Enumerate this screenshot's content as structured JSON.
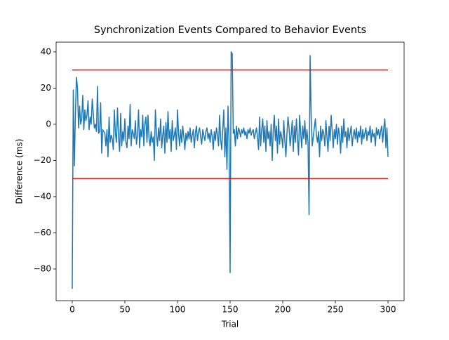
{
  "chart_data": {
    "type": "line",
    "title": "Synchronization Events Compared to Behavior Events",
    "xlabel": "Trial",
    "ylabel": "Difference (ms)",
    "xlim": [
      -15.3,
      315.3
    ],
    "ylim": [
      -97.5,
      45.4
    ],
    "xticks": [
      0,
      50,
      100,
      150,
      200,
      250,
      300
    ],
    "yticks": [
      {
        "value": -80,
        "label": "−80"
      },
      {
        "value": -60,
        "label": "−60"
      },
      {
        "value": -40,
        "label": "−40"
      },
      {
        "value": -20,
        "label": "−20"
      },
      0,
      20,
      40
    ],
    "x": [
      0,
      1,
      2,
      3,
      4,
      5,
      6,
      7,
      8,
      9,
      10,
      11,
      12,
      13,
      14,
      15,
      16,
      17,
      18,
      19,
      20,
      21,
      22,
      23,
      24,
      25,
      26,
      27,
      28,
      29,
      30,
      31,
      32,
      33,
      34,
      35,
      36,
      37,
      38,
      39,
      40,
      41,
      42,
      43,
      44,
      45,
      46,
      47,
      48,
      49,
      50,
      51,
      52,
      53,
      54,
      55,
      56,
      57,
      58,
      59,
      60,
      61,
      62,
      63,
      64,
      65,
      66,
      67,
      68,
      69,
      70,
      71,
      72,
      73,
      74,
      75,
      76,
      77,
      78,
      79,
      80,
      81,
      82,
      83,
      84,
      85,
      86,
      87,
      88,
      89,
      90,
      91,
      92,
      93,
      94,
      95,
      96,
      97,
      98,
      99,
      100,
      101,
      102,
      103,
      104,
      105,
      106,
      107,
      108,
      109,
      110,
      111,
      112,
      113,
      114,
      115,
      116,
      117,
      118,
      119,
      120,
      121,
      122,
      123,
      124,
      125,
      126,
      127,
      128,
      129,
      130,
      131,
      132,
      133,
      134,
      135,
      136,
      137,
      138,
      139,
      140,
      141,
      142,
      143,
      144,
      145,
      146,
      147,
      148,
      149,
      150,
      151,
      152,
      153,
      154,
      155,
      156,
      157,
      158,
      159,
      160,
      161,
      162,
      163,
      164,
      165,
      166,
      167,
      168,
      169,
      170,
      171,
      172,
      173,
      174,
      175,
      176,
      177,
      178,
      179,
      180,
      181,
      182,
      183,
      184,
      185,
      186,
      187,
      188,
      189,
      190,
      191,
      192,
      193,
      194,
      195,
      196,
      197,
      198,
      199,
      200,
      201,
      202,
      203,
      204,
      205,
      206,
      207,
      208,
      209,
      210,
      211,
      212,
      213,
      214,
      215,
      216,
      217,
      218,
      219,
      220,
      221,
      222,
      223,
      224,
      225,
      226,
      227,
      228,
      229,
      230,
      231,
      232,
      233,
      234,
      235,
      236,
      237,
      238,
      239,
      240,
      241,
      242,
      243,
      244,
      245,
      246,
      247,
      248,
      249,
      250,
      251,
      252,
      253,
      254,
      255,
      256,
      257,
      258,
      259,
      260,
      261,
      262,
      263,
      264,
      265,
      266,
      267,
      268,
      269,
      270,
      271,
      272,
      273,
      274,
      275,
      276,
      277,
      278,
      279,
      280,
      281,
      282,
      283,
      284,
      285,
      286,
      287,
      288,
      289,
      290,
      291,
      292,
      293,
      294,
      295,
      296,
      297,
      298,
      299,
      300
    ],
    "series": [
      {
        "color": "#1f77b4",
        "values": [
          -91,
          19,
          -23,
          5,
          26,
          20,
          -2,
          10,
          0,
          3,
          16,
          -3,
          8,
          2,
          5,
          13,
          -3,
          4,
          0,
          14,
          6,
          -2,
          0,
          -4,
          21,
          -5,
          -4,
          12,
          -16,
          -3,
          -4,
          -5,
          -12,
          -3,
          -18,
          4,
          -10,
          -6,
          -8,
          -14,
          8,
          -5,
          -10,
          9,
          -7,
          -15,
          6,
          -12,
          -4,
          -9,
          3,
          -10,
          -13,
          -1,
          -8,
          11,
          -12,
          -3,
          -5,
          -8,
          2,
          -11,
          -6,
          8,
          -13,
          -3,
          -7,
          5,
          -12,
          0,
          4,
          -10,
          5,
          -8,
          -12,
          -4,
          -10,
          -7,
          -20,
          8,
          -5,
          -12,
          -2,
          -9,
          3,
          -13,
          -6,
          -1,
          -16,
          1,
          -10,
          7,
          -8,
          -3,
          -15,
          2,
          -9,
          -6,
          -2,
          -14,
          8,
          -5,
          -12,
          -3,
          -10,
          -1,
          -7,
          -14,
          -5,
          -9,
          -4,
          -8,
          -2,
          -10,
          -6,
          -3,
          -13,
          -5,
          -1,
          -9,
          -4,
          -2,
          -7,
          -11,
          -3,
          -6,
          -9,
          -4,
          -2,
          -8,
          -5,
          -10,
          -3,
          -7,
          -14,
          -4,
          -9,
          -2,
          -6,
          -12,
          5,
          -8,
          -14,
          -3,
          8,
          -18,
          -2,
          -25,
          10,
          -10,
          -82,
          40,
          39,
          -5,
          -3,
          -12,
          -1,
          -8,
          -2,
          -4,
          -7,
          -3,
          -5,
          -2,
          -6,
          -4,
          -8,
          -3,
          -5,
          -2,
          -6,
          -4,
          -3,
          -8,
          -5,
          -2,
          -7,
          -14,
          4,
          -12,
          -3,
          3,
          -10,
          -1,
          -15,
          2,
          -8,
          -4,
          -12,
          0,
          -20,
          -3,
          5,
          -9,
          -1,
          -16,
          3,
          -11,
          -4,
          -7,
          -13,
          2,
          -9,
          -18,
          -5,
          4,
          -2,
          -12,
          -6,
          2,
          -15,
          -1,
          -10,
          3,
          -8,
          -17,
          5,
          -4,
          -13,
          -1,
          -8,
          2,
          -11,
          -3,
          -10,
          -50,
          38,
          5,
          -12,
          -7,
          -2,
          3,
          -6,
          -10,
          -4,
          -18,
          -1,
          -9,
          -3,
          -5,
          -12,
          2,
          -7,
          -15,
          -1,
          -9,
          5,
          -4,
          -13,
          -3,
          -8,
          0,
          -11,
          -2,
          -6,
          -16,
          -1,
          -10,
          3,
          -7,
          -4,
          -13,
          -2,
          -9,
          -5,
          -1,
          -12,
          -6,
          -3,
          -8,
          -2,
          -10,
          -4,
          -7,
          -1,
          -11,
          -3,
          -8,
          -5,
          -2,
          -9,
          -4,
          -6,
          -1,
          -10,
          -3,
          -7,
          -5,
          -12,
          -2,
          -6,
          -3,
          -8,
          -4,
          -1,
          -10,
          -2,
          3,
          -13,
          -2,
          -18
        ]
      },
      {
        "color": "#ff0000",
        "x": [
          0,
          300
        ],
        "values": [
          30,
          30
        ]
      },
      {
        "color": "#ff0000",
        "x": [
          0,
          300
        ],
        "values": [
          -30,
          -30
        ]
      }
    ]
  }
}
